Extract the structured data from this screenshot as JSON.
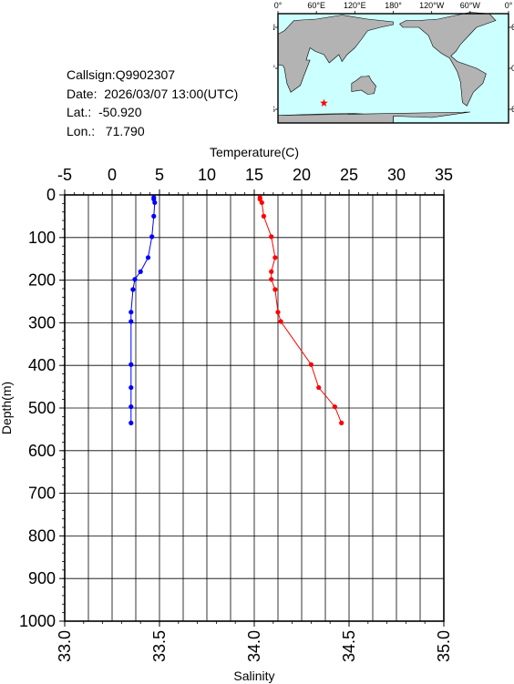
{
  "info": {
    "callsign": "Callsign:Q9902307",
    "date": "Date:  2026/03/07 13:00(UTC)",
    "lat": "Lat.:  -50.920",
    "lon": "Lon.:   71.790"
  },
  "map": {
    "lon_labels": [
      "0°",
      "60°E",
      "120°E",
      "180°",
      "120°W",
      "60°W",
      "0°"
    ],
    "lat_labels": [
      "60°N",
      "0°",
      "60°S"
    ],
    "ocean_color": "#ccffff",
    "land_color": "#b3b3b3",
    "marker": {
      "lon": 71.79,
      "lat": -50.92,
      "color": "#ff0000",
      "icon": "star-icon"
    }
  },
  "chart_data": {
    "type": "line",
    "x_top": {
      "label": "Temperature(C)",
      "range": [
        -5,
        35
      ],
      "ticks": [
        "-5",
        "0",
        "5",
        "10",
        "15",
        "20",
        "25",
        "30",
        "35"
      ]
    },
    "x_bottom": {
      "label": "Salinity",
      "range": [
        33.0,
        35.0
      ],
      "ticks": [
        "33.0",
        "33.5",
        "34.0",
        "34.5",
        "35.0"
      ]
    },
    "y": {
      "label": "Depth(m)",
      "range": [
        0,
        1000
      ],
      "inverted": true,
      "ticks": [
        "0",
        "100",
        "200",
        "300",
        "400",
        "500",
        "600",
        "700",
        "800",
        "900",
        "1000"
      ]
    },
    "grid": true,
    "series": [
      {
        "axis": "top",
        "color": "#ff0000",
        "points": [
          [
            15.6,
            6
          ],
          [
            15.6,
            10
          ],
          [
            15.8,
            18
          ],
          [
            16.0,
            50
          ],
          [
            16.8,
            98
          ],
          [
            17.2,
            147
          ],
          [
            16.8,
            180
          ],
          [
            16.8,
            198
          ],
          [
            17.2,
            222
          ],
          [
            17.5,
            275
          ],
          [
            17.8,
            297
          ],
          [
            21.0,
            398
          ],
          [
            21.8,
            452
          ],
          [
            23.5,
            497
          ],
          [
            24.2,
            535
          ]
        ]
      },
      {
        "axis": "bottom",
        "color": "#0000ff",
        "points": [
          [
            33.47,
            6
          ],
          [
            33.47,
            10
          ],
          [
            33.475,
            18
          ],
          [
            33.47,
            50
          ],
          [
            33.46,
            98
          ],
          [
            33.44,
            147
          ],
          [
            33.4,
            180
          ],
          [
            33.37,
            198
          ],
          [
            33.36,
            222
          ],
          [
            33.35,
            275
          ],
          [
            33.35,
            297
          ],
          [
            33.35,
            398
          ],
          [
            33.35,
            452
          ],
          [
            33.35,
            497
          ],
          [
            33.35,
            535
          ]
        ]
      }
    ]
  }
}
